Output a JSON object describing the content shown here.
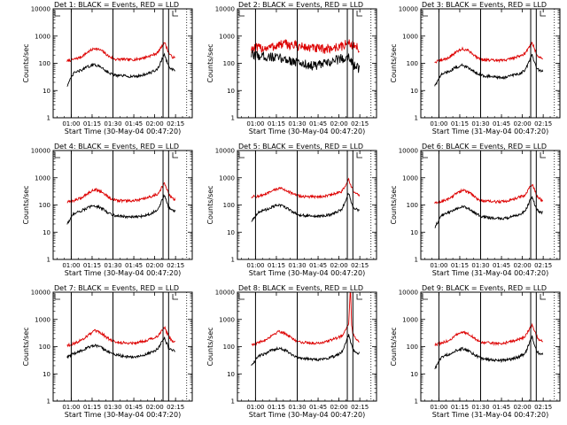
{
  "colors": {
    "events": "#000000",
    "lld": "#dd0000",
    "frame": "#000000"
  },
  "ylabel": "Counts/sec",
  "y_ticks": [
    "1",
    "10",
    "100",
    "1000",
    "10000"
  ],
  "chart_data": [
    {
      "type": "line",
      "title": "Det 1: BLACK = Events, RED = LLD",
      "xlabel": "Start Time (30-May-04 00:47:20)",
      "x_tick_labels": [
        "01:00",
        "01:15",
        "01:30",
        "01:45",
        "02:00",
        "02:15"
      ],
      "x_ticks_min": [
        13,
        28,
        43,
        58,
        73,
        88
      ],
      "xlim_min": [
        0,
        100
      ],
      "ylim": [
        1,
        10000
      ],
      "yscale": "log",
      "solid_markers_min": [
        13,
        43,
        79,
        83
      ],
      "dotted_markers_min": [
        96,
        101
      ],
      "series": [
        {
          "name": "BLACK = Events",
          "color": "black",
          "x": [
            10,
            15,
            20,
            25,
            30,
            35,
            40,
            45,
            50,
            55,
            60,
            65,
            70,
            75,
            80,
            81,
            83,
            85,
            88
          ],
          "y": [
            15,
            45,
            55,
            75,
            90,
            70,
            45,
            35,
            35,
            33,
            33,
            38,
            45,
            60,
            220,
            150,
            75,
            60,
            55
          ]
        },
        {
          "name": "RED = LLD",
          "color": "red",
          "x": [
            10,
            15,
            20,
            25,
            30,
            35,
            40,
            45,
            50,
            55,
            60,
            65,
            70,
            75,
            80,
            81,
            83,
            85,
            88
          ],
          "y": [
            120,
            140,
            170,
            260,
            360,
            290,
            180,
            140,
            140,
            135,
            140,
            160,
            190,
            240,
            600,
            450,
            250,
            180,
            150
          ]
        }
      ]
    },
    {
      "type": "line",
      "title": "Det 2: BLACK = Events, RED = LLD",
      "xlabel": "Start Time (30-May-04 00:47:20)",
      "x_tick_labels": [
        "01:00",
        "01:15",
        "01:30",
        "01:45",
        "02:00",
        "02:15"
      ],
      "x_ticks_min": [
        13,
        28,
        43,
        58,
        73,
        88
      ],
      "xlim_min": [
        0,
        100
      ],
      "ylim": [
        1,
        10000
      ],
      "yscale": "log",
      "solid_markers_min": [
        13,
        43,
        79,
        83
      ],
      "dotted_markers_min": [
        96,
        101
      ],
      "series": [
        {
          "name": "BLACK = Events",
          "color": "black",
          "x": [
            10,
            15,
            20,
            25,
            30,
            35,
            40,
            45,
            50,
            55,
            60,
            65,
            70,
            75,
            80,
            83,
            85,
            88
          ],
          "y": [
            200,
            190,
            180,
            170,
            150,
            140,
            120,
            100,
            90,
            80,
            90,
            100,
            130,
            150,
            180,
            100,
            70,
            60
          ]
        },
        {
          "name": "RED = LLD",
          "color": "red",
          "x": [
            10,
            15,
            20,
            25,
            30,
            35,
            40,
            45,
            50,
            55,
            60,
            65,
            70,
            75,
            80,
            83,
            85,
            88
          ],
          "y": [
            350,
            360,
            370,
            400,
            480,
            500,
            460,
            420,
            380,
            350,
            330,
            340,
            380,
            420,
            550,
            480,
            400,
            350
          ]
        }
      ]
    },
    {
      "type": "line",
      "title": "Det 3: BLACK = Events, RED = LLD",
      "xlabel": "Start Time (31-May-04 00:47:20)",
      "x_tick_labels": [
        "01:00",
        "01:15",
        "01:30",
        "01:45",
        "02:00",
        "02:15"
      ],
      "x_ticks_min": [
        13,
        28,
        43,
        58,
        73,
        88
      ],
      "xlim_min": [
        0,
        100
      ],
      "ylim": [
        1,
        10000
      ],
      "yscale": "log",
      "solid_markers_min": [
        13,
        43,
        79,
        83
      ],
      "dotted_markers_min": [
        96,
        101
      ],
      "series": [
        {
          "name": "BLACK = Events",
          "color": "black",
          "x": [
            10,
            15,
            20,
            25,
            30,
            35,
            40,
            45,
            50,
            55,
            60,
            65,
            70,
            75,
            80,
            81,
            83,
            85,
            88
          ],
          "y": [
            15,
            40,
            50,
            70,
            85,
            65,
            45,
            35,
            33,
            30,
            30,
            35,
            40,
            55,
            200,
            140,
            70,
            55,
            50
          ]
        },
        {
          "name": "RED = LLD",
          "color": "red",
          "x": [
            10,
            15,
            20,
            25,
            30,
            35,
            40,
            45,
            50,
            55,
            60,
            65,
            70,
            75,
            80,
            81,
            83,
            85,
            88
          ],
          "y": [
            110,
            130,
            160,
            250,
            340,
            280,
            170,
            135,
            130,
            125,
            130,
            150,
            180,
            230,
            580,
            430,
            240,
            170,
            140
          ]
        }
      ]
    },
    {
      "type": "line",
      "title": "Det 4: BLACK = Events, RED = LLD",
      "xlabel": "Start Time (30-May-04 00:47:20)",
      "x_tick_labels": [
        "01:00",
        "01:15",
        "01:30",
        "01:45",
        "02:00",
        "02:15"
      ],
      "x_ticks_min": [
        13,
        28,
        43,
        58,
        73,
        88
      ],
      "xlim_min": [
        0,
        100
      ],
      "ylim": [
        1,
        10000
      ],
      "yscale": "log",
      "solid_markers_min": [
        13,
        43,
        79,
        83
      ],
      "dotted_markers_min": [
        96,
        101
      ],
      "series": [
        {
          "name": "BLACK = Events",
          "color": "black",
          "x": [
            10,
            15,
            20,
            25,
            30,
            35,
            40,
            45,
            50,
            55,
            60,
            65,
            70,
            75,
            80,
            81,
            83,
            85,
            88
          ],
          "y": [
            20,
            50,
            60,
            80,
            95,
            75,
            50,
            40,
            38,
            36,
            36,
            40,
            48,
            65,
            230,
            160,
            80,
            65,
            60
          ]
        },
        {
          "name": "RED = LLD",
          "color": "red",
          "x": [
            10,
            15,
            20,
            25,
            30,
            35,
            40,
            45,
            50,
            55,
            60,
            65,
            70,
            75,
            80,
            81,
            83,
            85,
            88
          ],
          "y": [
            125,
            145,
            180,
            270,
            380,
            300,
            190,
            145,
            145,
            140,
            145,
            165,
            200,
            250,
            620,
            460,
            260,
            185,
            155
          ]
        }
      ]
    },
    {
      "type": "line",
      "title": "Det 5: BLACK = Events, RED = LLD",
      "xlabel": "Start Time (30-May-04 00:47:20)",
      "x_tick_labels": [
        "01:00",
        "01:15",
        "01:30",
        "01:45",
        "02:00",
        "02:15"
      ],
      "x_ticks_min": [
        13,
        28,
        43,
        58,
        73,
        88
      ],
      "xlim_min": [
        0,
        100
      ],
      "ylim": [
        1,
        10000
      ],
      "yscale": "log",
      "solid_markers_min": [
        13,
        43,
        79,
        83
      ],
      "dotted_markers_min": [
        96,
        101
      ],
      "series": [
        {
          "name": "BLACK = Events",
          "color": "black",
          "x": [
            10,
            15,
            20,
            25,
            30,
            35,
            40,
            45,
            50,
            55,
            60,
            65,
            70,
            75,
            80,
            81,
            83,
            85,
            88
          ],
          "y": [
            25,
            55,
            65,
            85,
            100,
            80,
            55,
            42,
            40,
            38,
            38,
            42,
            50,
            70,
            260,
            170,
            85,
            70,
            65
          ]
        },
        {
          "name": "RED = LLD",
          "color": "red",
          "x": [
            10,
            15,
            20,
            25,
            30,
            35,
            40,
            45,
            50,
            55,
            60,
            65,
            70,
            75,
            80,
            81,
            83,
            85,
            88
          ],
          "y": [
            200,
            210,
            240,
            320,
            420,
            350,
            250,
            210,
            200,
            200,
            205,
            220,
            260,
            310,
            850,
            600,
            350,
            260,
            230
          ]
        }
      ]
    },
    {
      "type": "line",
      "title": "Det 6: BLACK = Events, RED = LLD",
      "xlabel": "Start Time (31-May-04 00:47:20)",
      "x_tick_labels": [
        "01:00",
        "01:15",
        "01:30",
        "01:45",
        "02:00",
        "02:15"
      ],
      "x_ticks_min": [
        13,
        28,
        43,
        58,
        73,
        88
      ],
      "xlim_min": [
        0,
        100
      ],
      "ylim": [
        1,
        10000
      ],
      "yscale": "log",
      "solid_markers_min": [
        13,
        43,
        79,
        83
      ],
      "dotted_markers_min": [
        96,
        101
      ],
      "series": [
        {
          "name": "BLACK = Events",
          "color": "black",
          "x": [
            10,
            15,
            20,
            25,
            30,
            35,
            40,
            45,
            50,
            55,
            60,
            65,
            70,
            75,
            80,
            81,
            83,
            85,
            88
          ],
          "y": [
            15,
            42,
            52,
            72,
            88,
            68,
            46,
            36,
            34,
            32,
            32,
            36,
            42,
            58,
            210,
            145,
            72,
            58,
            52
          ]
        },
        {
          "name": "RED = LLD",
          "color": "red",
          "x": [
            10,
            15,
            20,
            25,
            30,
            35,
            40,
            45,
            50,
            55,
            60,
            65,
            70,
            75,
            80,
            81,
            83,
            85,
            88
          ],
          "y": [
            115,
            135,
            165,
            255,
            350,
            285,
            175,
            138,
            135,
            130,
            135,
            155,
            185,
            235,
            590,
            440,
            245,
            175,
            145
          ]
        }
      ]
    },
    {
      "type": "line",
      "title": "Det 7: BLACK = Events, RED = LLD",
      "xlabel": "Start Time (30-May-04 00:47:20)",
      "x_tick_labels": [
        "01:00",
        "01:15",
        "01:30",
        "01:45",
        "02:00",
        "02:15"
      ],
      "x_ticks_min": [
        13,
        28,
        43,
        58,
        73,
        88
      ],
      "xlim_min": [
        0,
        100
      ],
      "ylim": [
        1,
        10000
      ],
      "yscale": "log",
      "solid_markers_min": [
        13,
        43,
        79,
        83
      ],
      "dotted_markers_min": [
        96,
        101
      ],
      "series": [
        {
          "name": "BLACK = Events",
          "color": "black",
          "x": [
            10,
            15,
            20,
            25,
            30,
            35,
            40,
            45,
            50,
            55,
            60,
            65,
            70,
            75,
            80,
            81,
            83,
            85,
            88
          ],
          "y": [
            40,
            55,
            70,
            95,
            110,
            90,
            65,
            50,
            45,
            42,
            42,
            48,
            60,
            80,
            220,
            160,
            90,
            75,
            70
          ]
        },
        {
          "name": "RED = LLD",
          "color": "red",
          "x": [
            10,
            15,
            20,
            25,
            30,
            35,
            40,
            45,
            50,
            55,
            60,
            65,
            70,
            75,
            80,
            81,
            83,
            85,
            88
          ],
          "y": [
            110,
            130,
            170,
            260,
            380,
            300,
            190,
            145,
            140,
            135,
            140,
            160,
            190,
            240,
            520,
            400,
            240,
            170,
            145
          ]
        }
      ]
    },
    {
      "type": "line",
      "title": "Det 8: BLACK = Events, RED = LLD",
      "xlabel": "Start Time (30-May-04 00:47:20)",
      "x_tick_labels": [
        "01:00",
        "01:15",
        "01:30",
        "01:45",
        "02:00",
        "02:15"
      ],
      "x_ticks_min": [
        13,
        28,
        43,
        58,
        73,
        88
      ],
      "xlim_min": [
        0,
        100
      ],
      "ylim": [
        1,
        10000
      ],
      "yscale": "log",
      "solid_markers_min": [
        13,
        43,
        79,
        83
      ],
      "dotted_markers_min": [
        96,
        101
      ],
      "series": [
        {
          "name": "BLACK = Events",
          "color": "black",
          "x": [
            10,
            15,
            20,
            25,
            30,
            35,
            40,
            45,
            50,
            55,
            60,
            65,
            70,
            75,
            80,
            81,
            83,
            85,
            88
          ],
          "y": [
            20,
            45,
            55,
            75,
            90,
            72,
            48,
            38,
            36,
            34,
            34,
            38,
            45,
            62,
            270,
            170,
            80,
            62,
            58
          ]
        },
        {
          "name": "RED = LLD",
          "color": "red",
          "x": [
            10,
            15,
            20,
            25,
            30,
            35,
            40,
            45,
            50,
            55,
            60,
            65,
            70,
            75,
            80,
            81,
            81.5,
            82,
            83,
            85,
            88
          ],
          "y": [
            120,
            140,
            175,
            265,
            370,
            295,
            185,
            145,
            140,
            135,
            140,
            160,
            195,
            245,
            700,
            10000,
            10000,
            600,
            300,
            190,
            160
          ]
        }
      ]
    },
    {
      "type": "line",
      "title": "Det 9: BLACK = Events, RED = LLD",
      "xlabel": "Start Time (31-May-04 00:47:20)",
      "x_tick_labels": [
        "01:00",
        "01:15",
        "01:30",
        "01:45",
        "02:00",
        "02:15"
      ],
      "x_ticks_min": [
        13,
        28,
        43,
        58,
        73,
        88
      ],
      "xlim_min": [
        0,
        100
      ],
      "ylim": [
        1,
        10000
      ],
      "yscale": "log",
      "solid_markers_min": [
        13,
        43,
        79,
        83
      ],
      "dotted_markers_min": [
        96,
        101
      ],
      "series": [
        {
          "name": "BLACK = Events",
          "color": "black",
          "x": [
            10,
            15,
            20,
            25,
            30,
            35,
            40,
            45,
            50,
            55,
            60,
            65,
            70,
            75,
            80,
            81,
            83,
            85,
            88
          ],
          "y": [
            15,
            42,
            52,
            72,
            86,
            66,
            45,
            35,
            33,
            31,
            31,
            35,
            41,
            56,
            230,
            150,
            72,
            57,
            52
          ]
        },
        {
          "name": "RED = LLD",
          "color": "red",
          "x": [
            10,
            15,
            20,
            25,
            30,
            35,
            40,
            45,
            50,
            55,
            60,
            65,
            70,
            75,
            80,
            81,
            83,
            85,
            88
          ],
          "y": [
            115,
            135,
            165,
            255,
            350,
            285,
            175,
            138,
            135,
            130,
            135,
            155,
            185,
            235,
            640,
            470,
            260,
            180,
            150
          ]
        }
      ]
    }
  ]
}
